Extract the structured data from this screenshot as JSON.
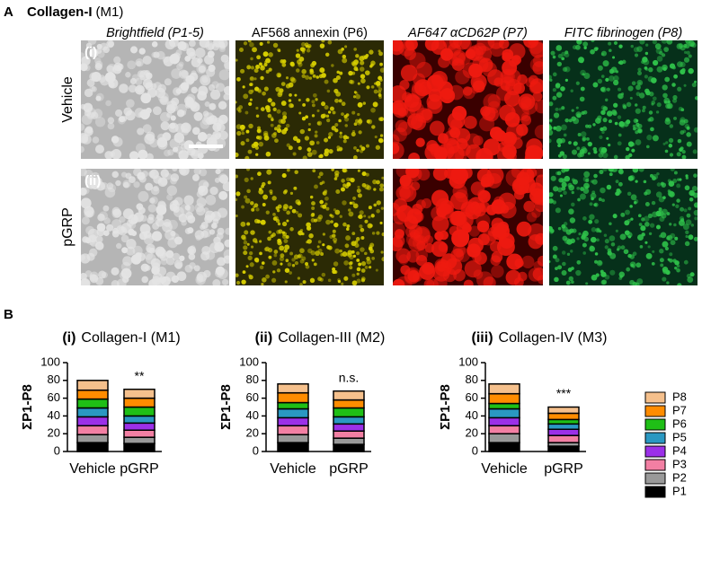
{
  "panel_a": {
    "label": "A",
    "title": "Collagen-I",
    "title_suffix": "(M1)",
    "columns": [
      "Brightfield (P1-5)",
      "AF568 annexin (P6)",
      "AF647 αCD62P (P7)",
      "FITC fibrinogen (P8)"
    ],
    "rows": [
      {
        "name": "Vehicle",
        "tag": "(i)"
      },
      {
        "name": "pGRP",
        "tag": "(ii)"
      }
    ]
  },
  "panel_b_label": "B",
  "chart_data": [
    {
      "type": "bar",
      "stacked": true,
      "panel": "(i)",
      "title": "Collagen-I (M1)",
      "ylabel": "ΣP1-P8",
      "categories": [
        "Vehicle",
        "pGRP"
      ],
      "ylim": [
        0,
        100
      ],
      "yticks": [
        0,
        20,
        40,
        60,
        80,
        100
      ],
      "annotation": "**",
      "series": [
        {
          "name": "P1",
          "color": "#000000",
          "values": [
            10,
            9
          ]
        },
        {
          "name": "P2",
          "color": "#999999",
          "values": [
            9,
            7
          ]
        },
        {
          "name": "P3",
          "color": "#f27fa3",
          "values": [
            10,
            8
          ]
        },
        {
          "name": "P4",
          "color": "#9b30e8",
          "values": [
            10,
            8
          ]
        },
        {
          "name": "P5",
          "color": "#2a98c2",
          "values": [
            10,
            8
          ]
        },
        {
          "name": "P6",
          "color": "#1fbf16",
          "values": [
            10,
            10
          ]
        },
        {
          "name": "P7",
          "color": "#ff8c00",
          "values": [
            10,
            10
          ]
        },
        {
          "name": "P8",
          "color": "#f5c08c",
          "values": [
            11,
            10
          ]
        }
      ]
    },
    {
      "type": "bar",
      "stacked": true,
      "panel": "(ii)",
      "title": "Collagen-III (M2)",
      "ylabel": "ΣP1-P8",
      "categories": [
        "Vehicle",
        "pGRP"
      ],
      "ylim": [
        0,
        100
      ],
      "yticks": [
        0,
        20,
        40,
        60,
        80,
        100
      ],
      "annotation": "n.s.",
      "series": [
        {
          "name": "P1",
          "color": "#000000",
          "values": [
            10,
            8
          ]
        },
        {
          "name": "P2",
          "color": "#999999",
          "values": [
            9,
            7
          ]
        },
        {
          "name": "P3",
          "color": "#f27fa3",
          "values": [
            10,
            8
          ]
        },
        {
          "name": "P4",
          "color": "#9b30e8",
          "values": [
            9,
            8
          ]
        },
        {
          "name": "P5",
          "color": "#2a98c2",
          "values": [
            10,
            8
          ]
        },
        {
          "name": "P6",
          "color": "#1fbf16",
          "values": [
            7,
            10
          ]
        },
        {
          "name": "P7",
          "color": "#ff8c00",
          "values": [
            11,
            9
          ]
        },
        {
          "name": "P8",
          "color": "#f5c08c",
          "values": [
            10,
            10
          ]
        }
      ]
    },
    {
      "type": "bar",
      "stacked": true,
      "panel": "(iii)",
      "title": "Collagen-IV (M3)",
      "ylabel": "ΣP1-P8",
      "categories": [
        "Vehicle",
        "pGRP"
      ],
      "ylim": [
        0,
        100
      ],
      "yticks": [
        0,
        20,
        40,
        60,
        80,
        100
      ],
      "annotation": "***",
      "series": [
        {
          "name": "P1",
          "color": "#000000",
          "values": [
            10,
            6
          ]
        },
        {
          "name": "P2",
          "color": "#999999",
          "values": [
            10,
            4
          ]
        },
        {
          "name": "P3",
          "color": "#f27fa3",
          "values": [
            9,
            8
          ]
        },
        {
          "name": "P4",
          "color": "#9b30e8",
          "values": [
            9,
            7
          ]
        },
        {
          "name": "P5",
          "color": "#2a98c2",
          "values": [
            10,
            6
          ]
        },
        {
          "name": "P6",
          "color": "#1fbf16",
          "values": [
            6,
            5
          ]
        },
        {
          "name": "P7",
          "color": "#ff8c00",
          "values": [
            11,
            7
          ]
        },
        {
          "name": "P8",
          "color": "#f5c08c",
          "values": [
            11,
            7
          ]
        }
      ]
    }
  ]
}
